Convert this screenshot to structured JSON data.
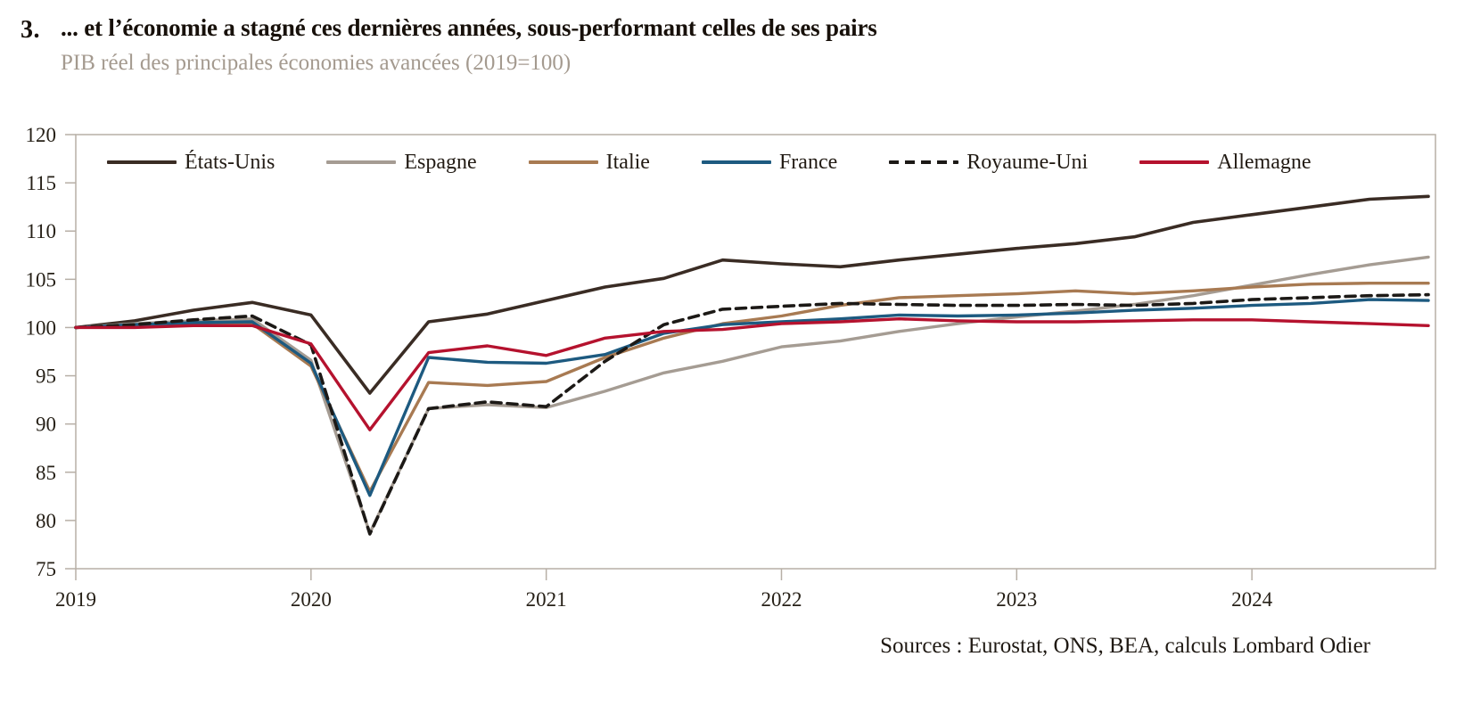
{
  "header": {
    "number": "3.",
    "title": "... et l’économie a stagné ces dernières années, sous-performant celles de ses pairs",
    "subtitle": "PIB réel des principales économies avancées (2019=100)"
  },
  "source": "Sources : Eurostat, ONS, BEA, calculs Lombard Odier",
  "chart_data": {
    "type": "line",
    "title": "PIB réel des principales économies avancées (2019=100)",
    "x_unit": "quarter",
    "x_range": [
      "2019Q1",
      "2024Q4"
    ],
    "x_tick_labels": [
      "2019",
      "2020",
      "2021",
      "2022",
      "2023",
      "2024"
    ],
    "ylim": [
      75,
      120
    ],
    "y_ticks": [
      75,
      80,
      85,
      90,
      95,
      100,
      105,
      110,
      115,
      120
    ],
    "grid": false,
    "legend_position": "top-inside",
    "frame_color": "#b7afa6",
    "axis_text_color": "#262017",
    "series": [
      {
        "name": "États-Unis",
        "color": "#3a2c24",
        "dash": false,
        "width": 3.6,
        "values": [
          100,
          100.7,
          101.8,
          102.6,
          101.3,
          93.2,
          100.6,
          101.4,
          102.8,
          104.2,
          105.1,
          107.0,
          106.6,
          106.3,
          107.0,
          107.6,
          108.2,
          108.7,
          109.4,
          110.9,
          111.7,
          112.5,
          113.3,
          113.6
        ]
      },
      {
        "name": "Espagne",
        "color": "#a59c93",
        "dash": false,
        "width": 3.4,
        "values": [
          100,
          100.4,
          100.7,
          100.9,
          96.6,
          78.7,
          91.6,
          92.0,
          91.7,
          93.4,
          95.3,
          96.5,
          98.0,
          98.6,
          99.6,
          100.4,
          101.1,
          101.7,
          102.4,
          103.3,
          104.4,
          105.5,
          106.5,
          107.3
        ]
      },
      {
        "name": "Italie",
        "color": "#a87a52",
        "dash": false,
        "width": 3.4,
        "values": [
          100,
          100.2,
          100.4,
          100.4,
          96.0,
          83.0,
          94.3,
          94.0,
          94.4,
          96.9,
          98.9,
          100.4,
          101.2,
          102.3,
          103.1,
          103.3,
          103.5,
          103.8,
          103.5,
          103.8,
          104.2,
          104.5,
          104.6,
          104.6
        ]
      },
      {
        "name": "France",
        "color": "#1d5a80",
        "dash": false,
        "width": 3.4,
        "values": [
          100,
          100.3,
          100.5,
          100.6,
          96.3,
          82.6,
          96.9,
          96.4,
          96.3,
          97.2,
          99.4,
          100.3,
          100.6,
          100.9,
          101.3,
          101.2,
          101.3,
          101.5,
          101.8,
          102.0,
          102.3,
          102.5,
          102.9,
          102.8
        ]
      },
      {
        "name": "Royaume-Uni",
        "color": "#1c1916",
        "dash": true,
        "width": 3.6,
        "values": [
          100,
          100.3,
          100.8,
          101.2,
          98.2,
          78.6,
          91.6,
          92.3,
          91.8,
          96.5,
          100.3,
          101.9,
          102.2,
          102.5,
          102.4,
          102.3,
          102.3,
          102.4,
          102.3,
          102.5,
          102.9,
          103.1,
          103.3,
          103.4
        ]
      },
      {
        "name": "Allemagne",
        "color": "#b5122e",
        "dash": false,
        "width": 3.4,
        "values": [
          100,
          100.0,
          100.2,
          100.2,
          98.3,
          89.4,
          97.4,
          98.1,
          97.1,
          98.9,
          99.6,
          99.8,
          100.4,
          100.6,
          100.9,
          100.7,
          100.6,
          100.6,
          100.7,
          100.8,
          100.8,
          100.6,
          100.4,
          100.2
        ]
      }
    ]
  }
}
